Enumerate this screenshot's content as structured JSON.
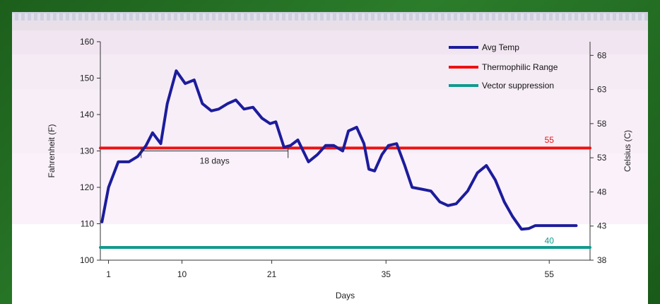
{
  "colors": {
    "avg_temp": "#1c1c9c",
    "thermophilic": "#ee1111",
    "vector": "#129a8e",
    "bands": [
      "#a8a8c8",
      "#d6c4d6",
      "#e6cfe6",
      "#ecdaec",
      "#f2e0f2",
      "#f5e6f5"
    ]
  },
  "chart_data": {
    "type": "line",
    "title": "",
    "xlabel": "Days",
    "ylabel_left": "Fahrenheit (F)",
    "ylabel_right": "Celsius (C)",
    "xlim": [
      0,
      60
    ],
    "ylim_left": [
      100,
      160
    ],
    "ylim_right": [
      38,
      70
    ],
    "x_ticks": [
      1,
      10,
      21,
      35,
      55
    ],
    "y_ticks_left": [
      100,
      110,
      120,
      130,
      140,
      150,
      160
    ],
    "y_ticks_right": [
      38,
      43,
      48,
      53,
      58,
      63,
      68
    ],
    "grid": false,
    "legend_position": "top-right",
    "series": [
      {
        "name": "Avg Temp",
        "color": "#1c1c9c",
        "x": [
          0.2,
          1.0,
          2.2,
          3.5,
          4.6,
          5.6,
          6.4,
          7.4,
          8.2,
          9.3,
          10.4,
          11.5,
          12.5,
          13.6,
          14.5,
          15.6,
          16.6,
          17.6,
          18.7,
          19.8,
          20.8,
          21.5,
          22.5,
          23.3,
          24.2,
          25.5,
          26.6,
          27.6,
          28.6,
          29.7,
          30.4,
          31.4,
          32.3,
          32.9,
          33.6,
          34.5,
          35.3,
          36.3,
          37.3,
          38.2,
          39.4,
          40.5,
          41.6,
          42.6,
          43.6,
          45.0,
          46.2,
          47.3,
          48.4,
          49.5,
          50.5,
          51.6,
          52.5,
          53.3,
          54.1,
          55.0,
          55.8,
          56.6,
          57.5,
          58.3
        ],
        "y": [
          110.5,
          120,
          127,
          127,
          128.5,
          131.5,
          135,
          132,
          143,
          152,
          148.5,
          149.5,
          143,
          141,
          141.5,
          143,
          144,
          141.5,
          142,
          139,
          137.5,
          138,
          131,
          131.5,
          133,
          127,
          129,
          131.5,
          131.5,
          130,
          135.5,
          136.5,
          132,
          125,
          124.5,
          129,
          131.5,
          132,
          126,
          120,
          119.5,
          119,
          116,
          115,
          115.5,
          119,
          124,
          126,
          122,
          116,
          112,
          108.5,
          108.7,
          109.5,
          109.5,
          109.5,
          109.5,
          109.5,
          109.5,
          109.5
        ]
      },
      {
        "name": "Thermophilic Range",
        "color": "#ee1111",
        "x": [
          0,
          60
        ],
        "y": [
          130.8,
          130.8
        ]
      },
      {
        "name": "Vector suppression",
        "color": "#129a8e",
        "x": [
          0,
          60
        ],
        "y": [
          103.5,
          103.5
        ]
      }
    ],
    "annotations": [
      {
        "text": "55",
        "x": 55,
        "y": 131.5,
        "color": "#ee1111"
      },
      {
        "text": "40",
        "x": 55,
        "y": 104.2,
        "color": "#129a8e"
      },
      {
        "text": "18 days",
        "x_start": 5,
        "x_end": 23,
        "y": 130
      }
    ]
  }
}
